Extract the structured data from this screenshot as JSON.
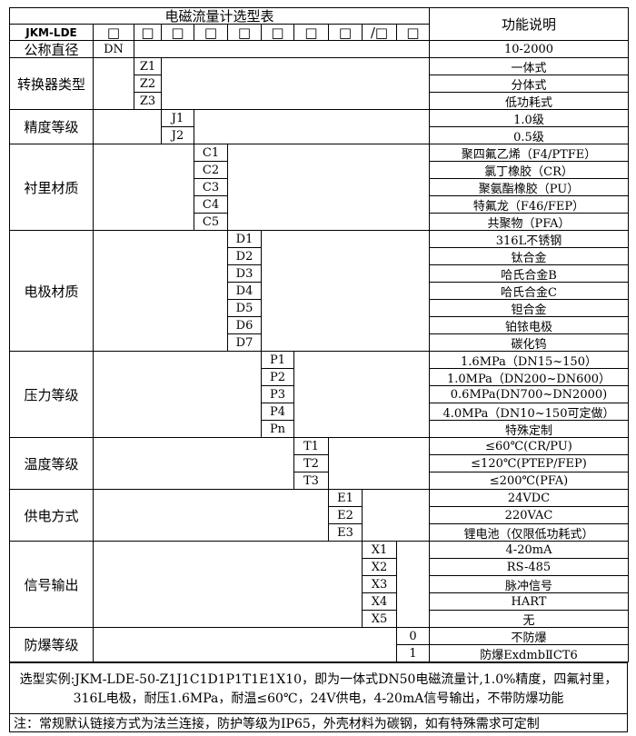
{
  "header": {
    "title": "电磁流量计选型表",
    "function_header": "功能说明",
    "model_prefix": "JKM-LDE",
    "code_boxes": [
      "□",
      "□",
      "□",
      "□",
      "□",
      "□",
      "□",
      "□",
      "/□",
      "□"
    ]
  },
  "groups": [
    {
      "label": "公称直径",
      "col": 1,
      "rows": [
        {
          "code": "DN",
          "desc": "10-2000"
        }
      ]
    },
    {
      "label": "转换器类型",
      "col": 2,
      "rows": [
        {
          "code": "Z1",
          "desc": "一体式"
        },
        {
          "code": "Z2",
          "desc": "分体式"
        },
        {
          "code": "Z3",
          "desc": "低功耗式"
        }
      ]
    },
    {
      "label": "精度等级",
      "col": 3,
      "rows": [
        {
          "code": "J1",
          "desc": "1.0级"
        },
        {
          "code": "J2",
          "desc": "0.5级"
        }
      ]
    },
    {
      "label": "衬里材质",
      "col": 4,
      "rows": [
        {
          "code": "C1",
          "desc": "聚四氟乙烯（F4/PTFE）"
        },
        {
          "code": "C2",
          "desc": "氯丁橡胶（CR）"
        },
        {
          "code": "C3",
          "desc": "聚氨酯橡胶（PU）"
        },
        {
          "code": "C4",
          "desc": "特氟龙（F46/FEP）"
        },
        {
          "code": "C5",
          "desc": "共聚物（PFA）"
        }
      ]
    },
    {
      "label": "电极材质",
      "col": 5,
      "rows": [
        {
          "code": "D1",
          "desc": "316L不锈钢"
        },
        {
          "code": "D2",
          "desc": "钛合金"
        },
        {
          "code": "D3",
          "desc": "哈氏合金B"
        },
        {
          "code": "D4",
          "desc": "哈氏合金C"
        },
        {
          "code": "D5",
          "desc": "钽合金"
        },
        {
          "code": "D6",
          "desc": "铂铱电极"
        },
        {
          "code": "D7",
          "desc": "碳化钨"
        }
      ]
    },
    {
      "label": "压力等级",
      "col": 6,
      "rows": [
        {
          "code": "P1",
          "desc": "1.6MPa（DN15~150）"
        },
        {
          "code": "P2",
          "desc": "1.0MPa（DN200~DN600）"
        },
        {
          "code": "P3",
          "desc": "0.6MPa(DN700~DN2000)"
        },
        {
          "code": "P4",
          "desc": "4.0MPa（DN10~150可定做）"
        },
        {
          "code": "Pn",
          "desc": "特殊定制"
        }
      ]
    },
    {
      "label": "温度等级",
      "col": 7,
      "rows": [
        {
          "code": "T1",
          "desc": "≤60℃(CR/PU)"
        },
        {
          "code": "T2",
          "desc": "≤120℃(PTEP/FEP)"
        },
        {
          "code": "T3",
          "desc": "≤200℃(PFA)"
        }
      ]
    },
    {
      "label": "供电方式",
      "col": 8,
      "rows": [
        {
          "code": "E1",
          "desc": "24VDC"
        },
        {
          "code": "E2",
          "desc": "220VAC"
        },
        {
          "code": "E3",
          "desc": "锂电池（仅限低功耗式）"
        }
      ]
    },
    {
      "label": "信号输出",
      "col": 9,
      "rows": [
        {
          "code": "X1",
          "desc": "4-20mA"
        },
        {
          "code": "X2",
          "desc": "RS-485"
        },
        {
          "code": "X3",
          "desc": "脉冲信号"
        },
        {
          "code": "X4",
          "desc": "HART"
        },
        {
          "code": "X5",
          "desc": "无"
        }
      ]
    },
    {
      "label": "防爆等级",
      "col": 10,
      "rows": [
        {
          "code": "0",
          "desc": "不防爆"
        },
        {
          "code": "1",
          "desc": "防爆ExdmbⅡCT6"
        }
      ]
    }
  ],
  "footer": {
    "example_line1": "选型实例:JKM-LDE-50-Z1J1C1D1P1T1E1X10，即为一体式DN50电磁流量计,1.0%精度，四氟衬里，",
    "example_line2": "316L电极，耐压1.6MPa，耐温≤60℃，24V供电，4-20mA信号输出，不带防爆功能",
    "note": "注：常规默认链接方式为法兰连接，防护等级为IP65，外壳材料为碳钢，如有特殊需求可定制"
  }
}
